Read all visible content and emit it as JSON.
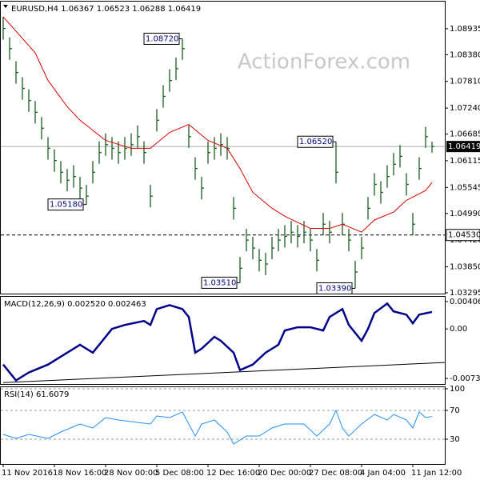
{
  "chart_data": [
    {
      "type": "ohlc",
      "title": "EURUSD,H4  1.06367 1.06523 1.06288 1.06419",
      "watermark": "ActionForex.com",
      "color": "#1b5e20",
      "xlim": [
        -0.5,
        69
      ],
      "ylim": [
        1.03278,
        1.09531
      ],
      "yticks": [
        1.08935,
        {
          "value": 1.0838,
          "label": "1.08380"
        },
        {
          "value": 1.0781,
          "label": "1.07810"
        },
        {
          "value": 1.0724,
          "label": "1.07240"
        },
        1.06685,
        1.06115,
        1.05545,
        {
          "value": 1.0499,
          "label": "1.04990"
        },
        {
          "value": 1.0442,
          "label": "1.04420"
        },
        {
          "value": 1.0385,
          "label": "1.03850"
        },
        1.03295
      ],
      "close": [
        1.0894,
        1.0851,
        1.08,
        1.0766,
        1.074,
        1.0715,
        1.0681,
        1.0638,
        1.0612,
        1.0587,
        1.057,
        1.0578,
        1.0553,
        1.0536,
        1.0587,
        1.0629,
        1.0646,
        1.0638,
        1.0629,
        1.0638,
        1.0646,
        1.0663,
        1.0629,
        1.0536,
        1.0698,
        1.0749,
        1.0783,
        1.0808,
        1.0851,
        1.0663,
        1.0595,
        1.0553,
        1.0629,
        1.0638,
        1.0646,
        1.0638,
        1.051,
        1.0382,
        1.0442,
        1.0425,
        1.0399,
        1.0391,
        1.0425,
        1.0442,
        1.045,
        1.0459,
        1.045,
        1.0459,
        1.0442,
        1.0399,
        1.0476,
        1.0459,
        1.0587,
        1.0476,
        1.0442,
        1.0374,
        1.0425,
        1.051,
        1.0561,
        1.0544,
        1.0578,
        1.0604,
        1.0621,
        1.0561,
        1.0476,
        1.0595,
        1.0663,
        1.06419
      ],
      "high": [
        1.0919,
        1.0875,
        1.0824,
        1.079,
        1.0764,
        1.0739,
        1.0705,
        1.0662,
        1.0636,
        1.0611,
        1.0594,
        1.0602,
        1.0577,
        1.056,
        1.0611,
        1.0653,
        1.067,
        1.0662,
        1.0653,
        1.0662,
        1.067,
        1.0687,
        1.0653,
        1.056,
        1.0722,
        1.0773,
        1.0807,
        1.0832,
        1.0872,
        1.0687,
        1.0619,
        1.0577,
        1.0653,
        1.0662,
        1.067,
        1.0662,
        1.0534,
        1.0406,
        1.0466,
        1.0449,
        1.0423,
        1.0415,
        1.0449,
        1.0466,
        1.0474,
        1.0483,
        1.0474,
        1.0483,
        1.0466,
        1.0423,
        1.05,
        1.0483,
        1.0652,
        1.05,
        1.0466,
        1.0398,
        1.0449,
        1.0534,
        1.0585,
        1.0568,
        1.0602,
        1.0628,
        1.0645,
        1.0585,
        1.05,
        1.0619,
        1.0684,
        1.06523
      ],
      "low": [
        1.087,
        1.0827,
        1.0776,
        1.0742,
        1.0716,
        1.0691,
        1.0657,
        1.0614,
        1.0588,
        1.0563,
        1.0546,
        1.0554,
        1.0529,
        1.0518,
        1.0563,
        1.0605,
        1.0622,
        1.0614,
        1.0605,
        1.0614,
        1.0622,
        1.0639,
        1.0605,
        1.0512,
        1.0674,
        1.0725,
        1.0759,
        1.0784,
        1.0827,
        1.0639,
        1.0571,
        1.0529,
        1.0605,
        1.0614,
        1.0622,
        1.0614,
        1.0486,
        1.0351,
        1.0418,
        1.0401,
        1.0375,
        1.0367,
        1.0401,
        1.0418,
        1.0426,
        1.0435,
        1.0426,
        1.0435,
        1.0418,
        1.0375,
        1.0452,
        1.0435,
        1.0563,
        1.0452,
        1.0418,
        1.0339,
        1.0401,
        1.0486,
        1.0537,
        1.052,
        1.0554,
        1.058,
        1.0597,
        1.0537,
        1.0452,
        1.0571,
        1.0639,
        1.06288
      ],
      "ma": {
        "color": "#dd0000",
        "x": [
          0,
          5,
          7,
          10,
          12,
          16,
          20,
          23,
          26,
          29,
          32,
          35,
          37,
          39,
          42,
          44,
          48,
          51,
          53,
          56,
          58,
          61,
          63,
          66,
          67
        ],
        "values": [
          1.0919,
          1.0842,
          1.0783,
          1.0727,
          1.0698,
          1.0655,
          1.0638,
          1.0638,
          1.0672,
          1.0689,
          1.0655,
          1.0638,
          1.0595,
          1.0544,
          1.051,
          1.0493,
          1.0467,
          1.0467,
          1.0476,
          1.0459,
          1.0485,
          1.0502,
          1.0527,
          1.0548,
          1.0565
        ]
      },
      "annotations": [
        {
          "x": 28,
          "value": 1.0872,
          "label": "1.08720"
        },
        {
          "x": 13,
          "value": 1.0518,
          "label": "1.05180"
        },
        {
          "x": 37,
          "value": 1.0351,
          "label": "1.03510"
        },
        {
          "x": 55,
          "value": 1.0339,
          "label": "1.03390"
        },
        {
          "x": 52,
          "value": 1.0652,
          "label": "1.06520"
        }
      ],
      "hline": {
        "value": 1.0453,
        "label": "1.04530"
      },
      "last": {
        "value": 1.06419,
        "label": "1.06419"
      }
    },
    {
      "type": "line",
      "title": "MACD(12,26,9) 0.002520 0.002463",
      "xlim": [
        -0.5,
        69
      ],
      "ylim": [
        -0.008203,
        0.004895
      ],
      "yticks": [
        0.004069,
        {
          "value": 0,
          "label": "0.00"
        },
        -0.007377
      ],
      "grid": false,
      "series": [
        {
          "color": "#00008b",
          "x": [
            0,
            2,
            4,
            7,
            9,
            12,
            14,
            17,
            19,
            22,
            23,
            24,
            26,
            28,
            29,
            30,
            31,
            33,
            34,
            36,
            37,
            39,
            41,
            43,
            44,
            46,
            48,
            50,
            51,
            53,
            54,
            56,
            57,
            58,
            60,
            61,
            63,
            64,
            65,
            67
          ],
          "values": [
            -0.00531,
            -0.00767,
            -0.00649,
            -0.00531,
            -0.00413,
            -0.00236,
            -0.00354,
            0,
            0.00059,
            0.00118,
            0.00059,
            0.00295,
            0.00354,
            0.00295,
            0.00177,
            -0.00354,
            -0.00295,
            -0.00118,
            -0.00177,
            -0.00354,
            -0.00614,
            -0.00531,
            -0.00354,
            -0.00236,
            -0.00024,
            0.00024,
            0.00024,
            -0.00024,
            0.00177,
            0.00295,
            0.00059,
            -0.00177,
            0,
            0.00236,
            0.00378,
            0.0026,
            0.00212,
            0.00083,
            0.00212,
            0.00252
          ]
        },
        {
          "color": "#000000",
          "x": [
            0,
            69
          ],
          "values": [
            -0.008,
            -0.005
          ]
        }
      ]
    },
    {
      "type": "line",
      "title": "RSI(14) 61.6079",
      "xlim": [
        -0.5,
        69
      ],
      "ylim": [
        -4.4,
        103.3
      ],
      "yticks": [
        100,
        70,
        30
      ],
      "grid": true,
      "xticks": [
        {
          "value": 0,
          "label": "11 Nov 2016"
        },
        {
          "value": 8,
          "label": "18 Nov 16:00"
        },
        {
          "value": 16,
          "label": "28 Nov 00:00"
        },
        {
          "value": 24,
          "label": "5 Dec 08:00"
        },
        {
          "value": 32,
          "label": "12 Dec 16:00"
        },
        {
          "value": 40,
          "label": "20 Dec 00:00"
        },
        {
          "value": 48,
          "label": "27 Dec 08:00"
        },
        {
          "value": 56,
          "label": "4 Jan 04:00"
        },
        {
          "value": 64,
          "label": "11 Jan 12:00"
        }
      ],
      "series": [
        {
          "color": "#1e90ff",
          "x": [
            0,
            2,
            4,
            7,
            9,
            12,
            14,
            16,
            18,
            21,
            23,
            24,
            26,
            28,
            30,
            31,
            33,
            35,
            36,
            38,
            40,
            42,
            44,
            47,
            49,
            51,
            52,
            53,
            54,
            56,
            58,
            60,
            61,
            63,
            64,
            65,
            66,
            67
          ],
          "values": [
            36.7,
            31.1,
            36.7,
            31.1,
            40.0,
            51.1,
            45.6,
            60.0,
            56.7,
            53.3,
            51.1,
            62.2,
            60.0,
            67.8,
            34.4,
            51.1,
            56.7,
            40.0,
            23.3,
            34.4,
            34.4,
            45.6,
            51.1,
            51.1,
            34.4,
            51.1,
            70.0,
            45.6,
            34.4,
            51.1,
            64.4,
            56.7,
            64.4,
            56.7,
            45.6,
            67.8,
            60.0,
            61.6
          ]
        }
      ]
    }
  ]
}
